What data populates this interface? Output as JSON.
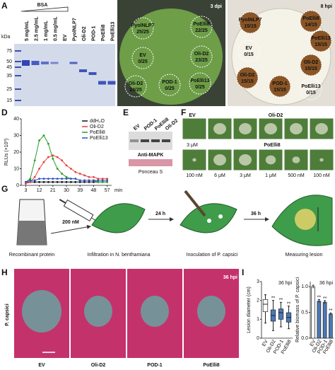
{
  "panel_a": {
    "letter": "A",
    "title": "BSA",
    "unit": "kDa",
    "lanes": [
      "5 mg/mL",
      "2.5 mg/mL",
      "1 mg/mL",
      "0.5 mg/mL",
      "EV",
      "PyolNLP7",
      "Oli-D2",
      "POD-1",
      "PoElli8",
      "PoElli13"
    ],
    "markers": [
      75,
      50,
      45,
      35,
      25,
      15
    ]
  },
  "panel_b": {
    "letter": "B",
    "time": "3 dpi",
    "spots": [
      [
        "PyolNLP7",
        "25/25"
      ],
      [
        "EV",
        "0/25"
      ],
      [
        "Oli-D2",
        "24/25"
      ],
      [
        "POD-1",
        "0/25"
      ],
      [
        "PoElli8",
        "22/25"
      ],
      [
        "Oli-D2",
        "23/25"
      ],
      [
        "PoElli13",
        "0/25"
      ]
    ]
  },
  "panel_c": {
    "letter": "C",
    "time": "8 hpi",
    "spots": [
      [
        "PyolNLP7",
        "15/15"
      ],
      [
        "EV",
        "0/15"
      ],
      [
        "Oli-D2",
        "15/15"
      ],
      [
        "POD-1",
        "15/15"
      ],
      [
        "PoElli8",
        "14/15"
      ],
      [
        "PoElli13",
        "15/15"
      ],
      [
        "Oli-D2",
        "15/15"
      ],
      [
        "PoElli13",
        "0/15"
      ]
    ]
  },
  "panel_d": {
    "letter": "D",
    "chart": {
      "type": "line",
      "y_label": "RLUs (×10³)",
      "x_label": "min",
      "x": [
        3,
        6,
        9,
        12,
        15,
        18,
        21,
        24,
        27,
        30,
        33,
        36,
        39,
        42,
        45,
        48,
        51,
        54,
        57
      ],
      "xlim": [
        0,
        60
      ],
      "xticks": [
        3,
        12,
        21,
        30,
        39,
        48,
        57
      ],
      "ylim": [
        0,
        40
      ],
      "yticks": [
        0,
        10,
        20,
        30,
        40
      ],
      "legend": "upper right",
      "series": [
        {
          "name": "ddH₂O",
          "color": "#111111",
          "values": [
            2,
            2,
            2,
            2,
            2,
            2,
            2,
            2,
            2,
            2,
            2,
            2,
            2,
            2,
            2,
            2,
            2,
            2,
            2
          ]
        },
        {
          "name": "Oli-D2",
          "color": "#e8413a",
          "values": [
            1,
            2,
            5,
            10,
            14,
            17,
            18,
            17,
            15,
            12,
            10,
            8,
            7,
            6,
            5,
            5,
            4,
            4,
            4
          ]
        },
        {
          "name": "PoElli8",
          "color": "#2a9d2a",
          "values": [
            2,
            4,
            15,
            27,
            30,
            25,
            16,
            10,
            7,
            5,
            4,
            4,
            3,
            3,
            3,
            3,
            2,
            2,
            2
          ]
        },
        {
          "name": "PoElli13",
          "color": "#2a4fd0",
          "values": [
            2,
            3,
            3,
            4,
            4,
            4,
            4,
            4,
            4,
            4,
            4,
            4,
            3,
            3,
            3,
            3,
            3,
            3,
            3
          ]
        }
      ]
    }
  },
  "panel_e": {
    "letter": "E",
    "lanes": [
      "EV",
      "POD-1",
      "PoElli8",
      "Oli-D2"
    ],
    "blot": "Anti-MAPK",
    "loading": "Ponceau S"
  },
  "panel_f": {
    "letter": "F",
    "row1": {
      "labels": [
        "EV",
        "Oli-D2"
      ],
      "concentration": "3 μM"
    },
    "row2": {
      "label": "PoElli8",
      "concentrations": [
        "100 nM",
        "6 μM",
        "3 μM",
        "1 μM",
        "500 nM",
        "100 nM"
      ]
    }
  },
  "panel_g": {
    "letter": "G",
    "steps": [
      "Recombinant protein",
      "Infiltration in N. benthamiana",
      "Inoculation of P. capsici",
      "Measuring lesion"
    ],
    "concentration": "200 nM",
    "intervals": [
      "24 h",
      "36 h"
    ]
  },
  "panel_h": {
    "letter": "H",
    "time": "36 hpi",
    "pathogen": "P. capsici",
    "treatments": [
      "EV",
      "Oli-D2",
      "POD-1",
      "PoElli8"
    ]
  },
  "panel_i": {
    "letter": "I",
    "charts": [
      {
        "type": "box",
        "title": "36 hpi",
        "y_label": "Lesion diameter (cm)",
        "categories": [
          "EV",
          "Oli-D2",
          "POD-1",
          "PoElli8"
        ],
        "ylim": [
          0,
          3
        ],
        "yticks": [
          0,
          1,
          2,
          3
        ],
        "colors": [
          "#ffffff",
          "#4a78b8",
          "#4a78b8",
          "#4a78b8"
        ],
        "min": [
          0.8,
          0.4,
          0.6,
          0.5
        ],
        "q1": [
          1.4,
          0.9,
          1.0,
          0.85
        ],
        "median": [
          1.8,
          1.2,
          1.35,
          1.1
        ],
        "q3": [
          2.05,
          1.5,
          1.55,
          1.35
        ],
        "max": [
          2.3,
          2.0,
          1.9,
          1.7
        ],
        "significance": [
          null,
          "**",
          "**",
          "**"
        ]
      },
      {
        "type": "bar",
        "title": "36 hpi",
        "y_label": "Relative biomass of P. capsici",
        "categories": [
          "EV",
          "Oli-D2",
          "POD-1",
          "PoElli8"
        ],
        "ylim": [
          0,
          1.1
        ],
        "yticks": [
          {
            "value": 0,
            "label": "0.0"
          },
          {
            "value": 0.5,
            "label": "0.5"
          },
          {
            "value": 1,
            "label": "1.0"
          }
        ],
        "colors": [
          "#ffffff",
          "#4a78b8",
          "#4a78b8",
          "#4a78b8"
        ],
        "values": [
          1.0,
          0.72,
          0.7,
          0.47
        ],
        "errors": [
          0.03,
          0.03,
          0.03,
          0.02
        ],
        "significance": [
          null,
          "**",
          "**",
          "**"
        ]
      }
    ]
  }
}
